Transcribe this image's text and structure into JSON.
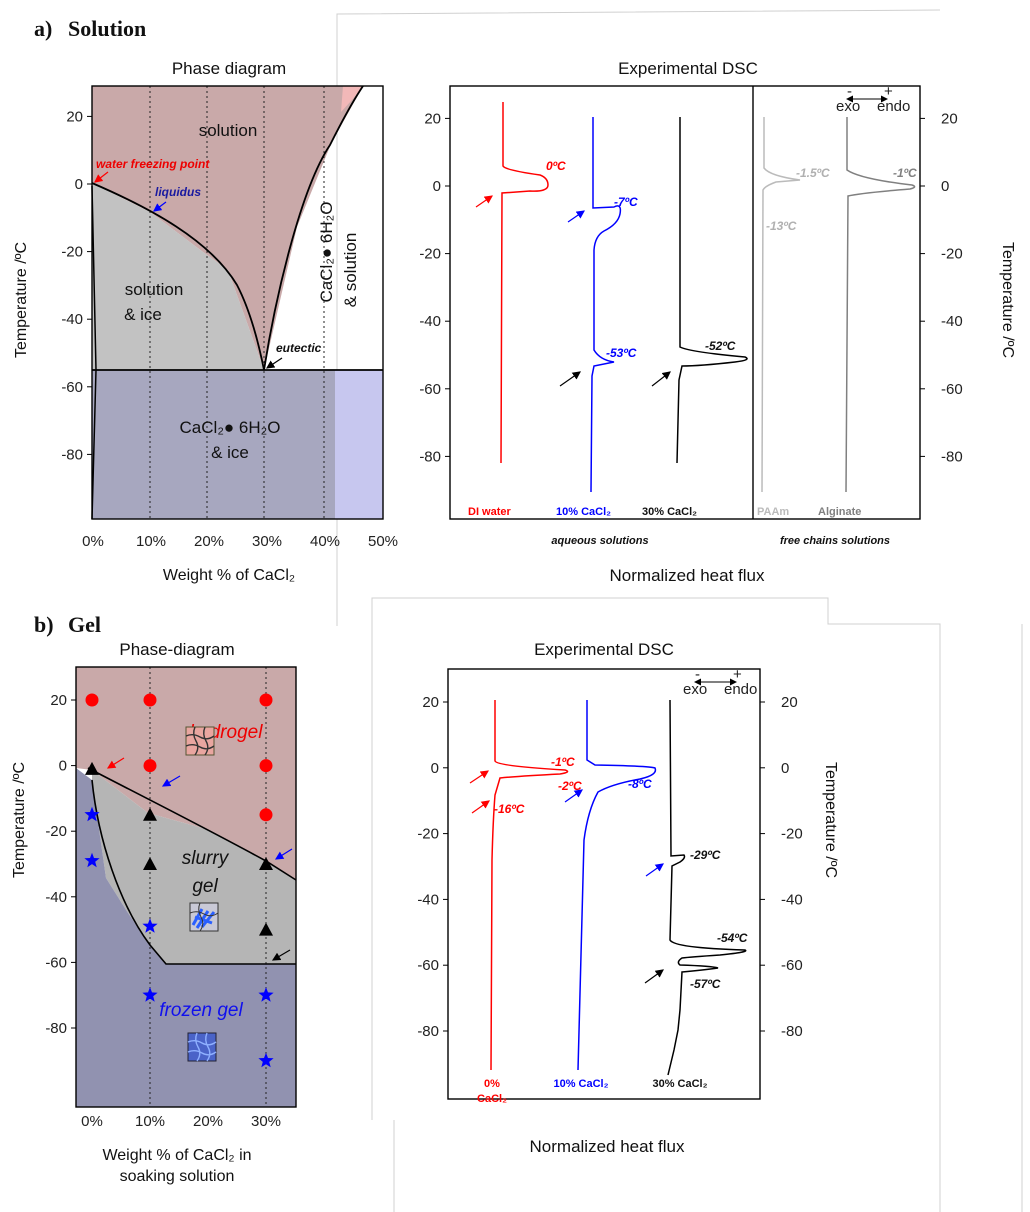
{
  "panel_a": {
    "label": "a)",
    "name": "Solution",
    "phase_title": "Phase diagram",
    "phase_xlabel": "Weight % of CaCl₂",
    "ylabel": "Temperature /ºC",
    "region_solution": "solution",
    "region_sol_ice_1": "solution",
    "region_sol_ice_2": "& ice",
    "region_hexa_ice_1": "CaCl₂● 6H₂O",
    "region_hexa_ice_2": "& ice",
    "region_hexa_sol_1": "CaCl₂● 6H₂O",
    "region_hexa_sol_2": "& solution",
    "ann_water": "water freezing point",
    "ann_liquidus": "liquidus",
    "ann_eutectic": "eutectic",
    "dsc_title": "Experimental DSC",
    "dsc_xlabel": "Normalized heat flux",
    "dsc_ylabel": "Temperature /ºC",
    "group_aqueous": "aqueous solutions",
    "group_free": "free chains solutions",
    "exo": "exo",
    "endo": "endo",
    "minus": "-",
    "plus": "+",
    "trace_labels": [
      "DI water",
      "10% CaCl₂",
      "30% CaCl₂",
      "PAAm",
      "Alginate"
    ],
    "peak_labels": [
      "0ºC",
      "-7ºC",
      "-53ºC",
      "-52ºC",
      "-1.5ºC",
      "-13ºC",
      "-1ºC"
    ]
  },
  "panel_b": {
    "label": "b)",
    "name": "Gel",
    "phase_title": "Phase-diagram",
    "phase_xlabel_1": "Weight % of CaCl₂ in",
    "phase_xlabel_2": "soaking solution",
    "ylabel": "Temperature /ºC",
    "region_hydrogel": "hydrogel",
    "region_slurry_1": "slurry",
    "region_slurry_2": "gel",
    "region_frozen": "frozen gel",
    "dsc_title": "Experimental DSC",
    "dsc_xlabel": "Normalized heat flux",
    "dsc_ylabel": "Temperature /ºC",
    "exo": "exo",
    "endo": "endo",
    "minus": "-",
    "plus": "+",
    "trace_label_0_1": "0%",
    "trace_label_0_2": "CaCl₂",
    "trace_labels": [
      "10% CaCl₂",
      "30% CaCl₂"
    ],
    "peak_labels": [
      "-1ºC",
      "-2ºC",
      "-16ºC",
      "-8ºC",
      "-29ºC",
      "-54ºC",
      "-57ºC"
    ]
  },
  "chart_data": [
    {
      "type": "line",
      "title": "Phase diagram",
      "xlabel": "Weight % of CaCl₂",
      "ylabel": "Temperature /ºC",
      "xlim": [
        -1,
        50
      ],
      "ylim": [
        -100,
        30
      ],
      "x_ticks": [
        0,
        10,
        20,
        30,
        40,
        50
      ],
      "x_tick_labels": [
        "0%",
        "10%",
        "20%",
        "30%",
        "40%",
        "50%"
      ],
      "y_ticks": [
        20,
        0,
        -20,
        -40,
        -60,
        -80
      ],
      "series": [
        {
          "values": [
            [
              0,
              0
            ],
            [
              10,
              -8
            ],
            [
              20,
              -21
            ],
            [
              25,
              -32
            ],
            [
              30,
              -55
            ]
          ]
        },
        {
          "values": [
            [
              30,
              -55
            ],
            [
              33,
              -35
            ],
            [
              36,
              -12
            ],
            [
              40,
              5
            ],
            [
              44,
              20
            ],
            [
              46,
              29
            ]
          ]
        },
        {
          "values": [
            [
              0,
              -55
            ],
            [
              50,
              -55
            ]
          ]
        }
      ],
      "colors": {
        "solution": "#c9a9a9",
        "solution_ice": "#c2c2c2",
        "hexa_ice": "#a7a7bf",
        "hexa_ice_right": "#c7c7ef",
        "hexa_sol_top": "#f2b8b8"
      },
      "grid": "vertical dotted at 10, 20, 30, 40"
    },
    {
      "type": "line",
      "title": "Experimental DSC",
      "xlabel": "Normalized heat flux",
      "ylabel": "Temperature /ºC",
      "ylim": [
        -100,
        30
      ],
      "y_ticks": [
        20,
        0,
        -20,
        -40,
        -60,
        -80
      ],
      "series": [
        {
          "name": "DI water",
          "color": "#ff0000",
          "peaks_C": [
            0
          ]
        },
        {
          "name": "10% CaCl₂",
          "color": "#0000ff",
          "peaks_C": [
            -7,
            -53
          ]
        },
        {
          "name": "30% CaCl₂",
          "color": "#000000",
          "peaks_C": [
            -52
          ]
        },
        {
          "name": "PAAm",
          "color": "#bbbbbb",
          "peaks_C": [
            -1.5,
            -13
          ]
        },
        {
          "name": "Alginate",
          "color": "#808080",
          "peaks_C": [
            -1
          ]
        }
      ]
    },
    {
      "type": "scatter",
      "title": "Phase-diagram",
      "xlabel": "Weight % of CaCl₂ in soaking solution",
      "ylabel": "Temperature /ºC",
      "xlim": [
        -2,
        35
      ],
      "ylim": [
        -95,
        30
      ],
      "x_ticks": [
        0,
        10,
        20,
        30
      ],
      "x_tick_labels": [
        "0%",
        "10%",
        "20%",
        "30%"
      ],
      "y_ticks": [
        20,
        0,
        -20,
        -40,
        -60,
        -80
      ],
      "series": [
        {
          "name": "hydrogel",
          "marker": "circle",
          "color": "#ff0000",
          "points": [
            [
              0,
              20
            ],
            [
              10,
              20
            ],
            [
              30,
              20
            ],
            [
              10,
              0
            ],
            [
              30,
              0
            ],
            [
              30,
              -15
            ]
          ]
        },
        {
          "name": "slurry gel",
          "marker": "triangle",
          "color": "#000000",
          "points": [
            [
              0,
              -1
            ],
            [
              10,
              -15
            ],
            [
              10,
              -30
            ],
            [
              30,
              -30
            ],
            [
              30,
              -50
            ]
          ]
        },
        {
          "name": "frozen gel",
          "marker": "star",
          "color": "#0000ff",
          "points": [
            [
              0,
              -15
            ],
            [
              0,
              -29
            ],
            [
              10,
              -49
            ],
            [
              10,
              -70
            ],
            [
              30,
              -70
            ],
            [
              30,
              -90
            ]
          ]
        }
      ],
      "boundaries": [
        {
          "values": [
            [
              0,
              0
            ],
            [
              10,
              -5
            ],
            [
              20,
              -14
            ],
            [
              30,
              -26
            ],
            [
              35,
              -32
            ]
          ]
        },
        {
          "values": [
            [
              0,
              -3
            ],
            [
              5,
              -35
            ],
            [
              10,
              -50
            ],
            [
              13,
              -57
            ],
            [
              35,
              -57
            ]
          ]
        }
      ],
      "colors": {
        "hydrogel": "#c9a9a9",
        "slurry": "#b5b5b5",
        "frozen": "#9192b0"
      }
    },
    {
      "type": "line",
      "title": "Experimental DSC",
      "xlabel": "Normalized heat flux",
      "ylabel": "Temperature /ºC",
      "ylim": [
        -100,
        30
      ],
      "y_ticks": [
        20,
        0,
        -20,
        -40,
        -60,
        -80
      ],
      "series": [
        {
          "name": "0% CaCl₂",
          "color": "#ff0000",
          "peaks_C": [
            -1,
            -2,
            -16
          ]
        },
        {
          "name": "10% CaCl₂",
          "color": "#0000ff",
          "peaks_C": [
            -8
          ]
        },
        {
          "name": "30% CaCl₂",
          "color": "#000000",
          "peaks_C": [
            -29,
            -54,
            -57
          ]
        }
      ]
    }
  ]
}
